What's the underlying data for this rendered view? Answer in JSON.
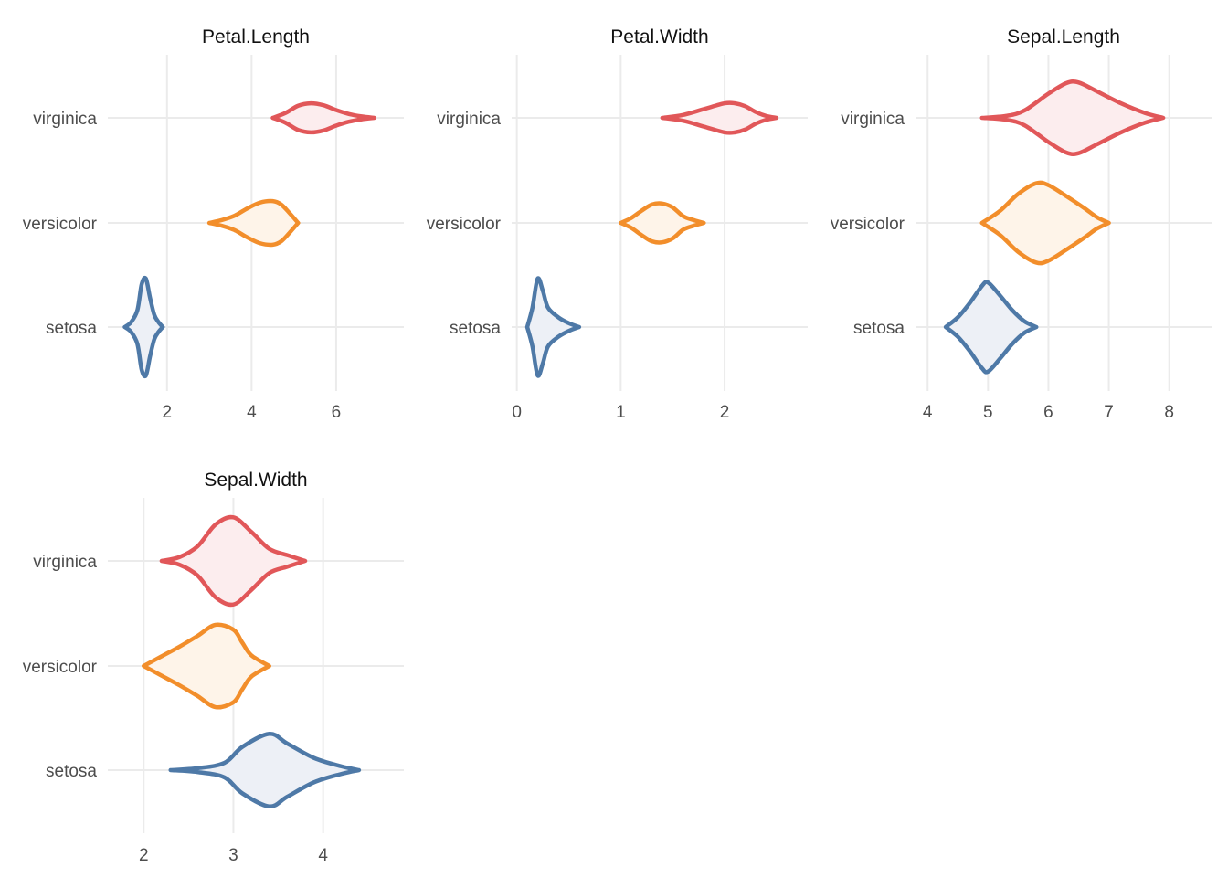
{
  "chart_data": {
    "type": "violin",
    "orientation": "horizontal",
    "layout": "facets-3-columns",
    "species": [
      "setosa",
      "versicolor",
      "virginica"
    ],
    "colors": {
      "setosa": {
        "stroke": "#4e79a7",
        "fill": "#edf0f6"
      },
      "versicolor": {
        "stroke": "#f28e2b",
        "fill": "#fef4e9"
      },
      "virginica": {
        "stroke": "#e15759",
        "fill": "#fcedee"
      }
    },
    "grid": true,
    "legend": "none",
    "panels": [
      {
        "title": "Petal.Length",
        "xlim": [
          0.6,
          7.6
        ],
        "xticks": [
          2,
          4,
          6
        ],
        "violins": {
          "setosa": {
            "min": 1.0,
            "max": 1.9,
            "profile": [
              [
                1.0,
                0.0
              ],
              [
                1.15,
                0.1
              ],
              [
                1.3,
                0.35
              ],
              [
                1.4,
                0.88
              ],
              [
                1.5,
                1.0
              ],
              [
                1.6,
                0.6
              ],
              [
                1.7,
                0.25
              ],
              [
                1.8,
                0.1
              ],
              [
                1.9,
                0.0
              ]
            ]
          },
          "versicolor": {
            "min": 3.0,
            "max": 5.1,
            "profile": [
              [
                3.0,
                0.0
              ],
              [
                3.3,
                0.06
              ],
              [
                3.6,
                0.15
              ],
              [
                3.9,
                0.3
              ],
              [
                4.2,
                0.42
              ],
              [
                4.5,
                0.45
              ],
              [
                4.7,
                0.38
              ],
              [
                4.9,
                0.2
              ],
              [
                5.1,
                0.0
              ]
            ]
          },
          "virginica": {
            "min": 4.5,
            "max": 6.9,
            "profile": [
              [
                4.5,
                0.0
              ],
              [
                4.8,
                0.1
              ],
              [
                5.1,
                0.25
              ],
              [
                5.4,
                0.3
              ],
              [
                5.7,
                0.26
              ],
              [
                6.0,
                0.16
              ],
              [
                6.3,
                0.08
              ],
              [
                6.6,
                0.03
              ],
              [
                6.9,
                0.0
              ]
            ]
          }
        }
      },
      {
        "title": "Petal.Width",
        "xlim": [
          -0.05,
          2.8
        ],
        "xticks": [
          0,
          1,
          2
        ],
        "violins": {
          "setosa": {
            "min": 0.1,
            "max": 0.6,
            "profile": [
              [
                0.1,
                0.0
              ],
              [
                0.15,
                0.4
              ],
              [
                0.2,
                1.0
              ],
              [
                0.25,
                0.75
              ],
              [
                0.3,
                0.4
              ],
              [
                0.4,
                0.2
              ],
              [
                0.5,
                0.08
              ],
              [
                0.6,
                0.0
              ]
            ]
          },
          "versicolor": {
            "min": 1.0,
            "max": 1.8,
            "profile": [
              [
                1.0,
                0.0
              ],
              [
                1.1,
                0.1
              ],
              [
                1.2,
                0.25
              ],
              [
                1.3,
                0.38
              ],
              [
                1.4,
                0.4
              ],
              [
                1.5,
                0.32
              ],
              [
                1.6,
                0.14
              ],
              [
                1.7,
                0.06
              ],
              [
                1.8,
                0.0
              ]
            ]
          },
          "virginica": {
            "min": 1.4,
            "max": 2.5,
            "profile": [
              [
                1.4,
                0.0
              ],
              [
                1.6,
                0.06
              ],
              [
                1.8,
                0.18
              ],
              [
                2.0,
                0.3
              ],
              [
                2.1,
                0.3
              ],
              [
                2.2,
                0.24
              ],
              [
                2.3,
                0.12
              ],
              [
                2.4,
                0.04
              ],
              [
                2.5,
                0.0
              ]
            ]
          }
        }
      },
      {
        "title": "Sepal.Length",
        "xlim": [
          3.8,
          8.7
        ],
        "xticks": [
          4,
          5,
          6,
          7,
          8
        ],
        "violins": {
          "setosa": {
            "min": 4.3,
            "max": 5.8,
            "profile": [
              [
                4.3,
                0.0
              ],
              [
                4.5,
                0.2
              ],
              [
                4.7,
                0.5
              ],
              [
                4.9,
                0.85
              ],
              [
                5.0,
                0.92
              ],
              [
                5.2,
                0.65
              ],
              [
                5.4,
                0.35
              ],
              [
                5.6,
                0.12
              ],
              [
                5.8,
                0.0
              ]
            ]
          },
          "versicolor": {
            "min": 4.9,
            "max": 7.0,
            "profile": [
              [
                4.9,
                0.0
              ],
              [
                5.2,
                0.25
              ],
              [
                5.5,
                0.6
              ],
              [
                5.8,
                0.82
              ],
              [
                6.0,
                0.78
              ],
              [
                6.3,
                0.55
              ],
              [
                6.6,
                0.3
              ],
              [
                6.8,
                0.12
              ],
              [
                7.0,
                0.0
              ]
            ]
          },
          "virginica": {
            "min": 4.9,
            "max": 7.9,
            "profile": [
              [
                4.9,
                0.0
              ],
              [
                5.3,
                0.04
              ],
              [
                5.6,
                0.15
              ],
              [
                6.0,
                0.5
              ],
              [
                6.3,
                0.72
              ],
              [
                6.5,
                0.73
              ],
              [
                6.8,
                0.55
              ],
              [
                7.2,
                0.3
              ],
              [
                7.6,
                0.1
              ],
              [
                7.9,
                0.0
              ]
            ]
          }
        }
      },
      {
        "title": "Sepal.Width",
        "xlim": [
          1.6,
          4.9
        ],
        "xticks": [
          2,
          3,
          4
        ],
        "violins": {
          "setosa": {
            "min": 2.3,
            "max": 4.4,
            "profile": [
              [
                2.3,
                0.0
              ],
              [
                2.6,
                0.04
              ],
              [
                2.9,
                0.15
              ],
              [
                3.1,
                0.48
              ],
              [
                3.4,
                0.75
              ],
              [
                3.6,
                0.55
              ],
              [
                3.9,
                0.25
              ],
              [
                4.2,
                0.08
              ],
              [
                4.4,
                0.0
              ]
            ]
          },
          "versicolor": {
            "min": 2.0,
            "max": 3.4,
            "profile": [
              [
                2.0,
                0.0
              ],
              [
                2.2,
                0.2
              ],
              [
                2.4,
                0.4
              ],
              [
                2.6,
                0.62
              ],
              [
                2.8,
                0.85
              ],
              [
                3.0,
                0.75
              ],
              [
                3.1,
                0.48
              ],
              [
                3.2,
                0.22
              ],
              [
                3.4,
                0.0
              ]
            ]
          },
          "virginica": {
            "min": 2.2,
            "max": 3.8,
            "profile": [
              [
                2.2,
                0.0
              ],
              [
                2.4,
                0.08
              ],
              [
                2.6,
                0.3
              ],
              [
                2.8,
                0.75
              ],
              [
                3.0,
                0.9
              ],
              [
                3.2,
                0.6
              ],
              [
                3.4,
                0.25
              ],
              [
                3.6,
                0.12
              ],
              [
                3.8,
                0.0
              ]
            ]
          }
        }
      }
    ]
  }
}
